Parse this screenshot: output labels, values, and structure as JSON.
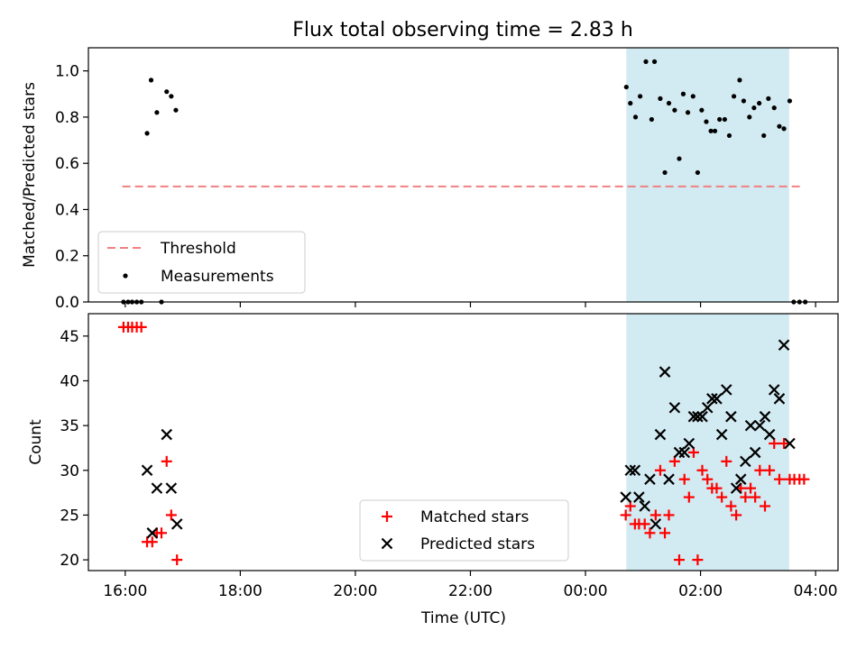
{
  "chart_data": {
    "title": "Flux total observing time = 2.83 h",
    "xlabel": "Time (UTC)",
    "x_ticks": [
      "16:00",
      "18:00",
      "20:00",
      "22:00",
      "00:00",
      "02:00",
      "04:00"
    ],
    "x_tick_hours": [
      16,
      18,
      20,
      22,
      24,
      26,
      28
    ],
    "xlim_hours": [
      15.36,
      28.39
    ],
    "shaded_span_hours": [
      24.71,
      27.54
    ],
    "shade_color": "#add8e6",
    "panels": [
      {
        "type": "scatter",
        "ylabel": "Matched/Predicted stars",
        "ylim": [
          0,
          1.1
        ],
        "y_ticks": [
          "0.0",
          "0.2",
          "0.4",
          "0.6",
          "0.8",
          "1.0"
        ],
        "y_tick_values": [
          0,
          0.2,
          0.4,
          0.6,
          0.8,
          1.0
        ],
        "legend": [
          "Threshold",
          "Measurements"
        ],
        "legend_position": "lower-left",
        "threshold": {
          "name": "Threshold",
          "y": 0.5,
          "x_range_hours": [
            15.95,
            27.8
          ],
          "color": "#f08080"
        },
        "series": [
          {
            "name": "Measurements",
            "color": "#000000",
            "points": [
              [
                15.97,
                0.0
              ],
              [
                16.05,
                0.0
              ],
              [
                16.12,
                0.0
              ],
              [
                16.2,
                0.0
              ],
              [
                16.28,
                0.0
              ],
              [
                16.38,
                0.73
              ],
              [
                16.45,
                0.96
              ],
              [
                16.55,
                0.82
              ],
              [
                16.72,
                0.91
              ],
              [
                16.8,
                0.89
              ],
              [
                16.88,
                0.83
              ],
              [
                16.63,
                0.0
              ],
              [
                24.71,
                0.93
              ],
              [
                24.78,
                0.86
              ],
              [
                24.87,
                0.8
              ],
              [
                24.95,
                0.89
              ],
              [
                25.05,
                1.04
              ],
              [
                25.15,
                0.79
              ],
              [
                25.2,
                1.04
              ],
              [
                25.3,
                0.88
              ],
              [
                25.38,
                0.56
              ],
              [
                25.45,
                0.86
              ],
              [
                25.55,
                0.83
              ],
              [
                25.63,
                0.62
              ],
              [
                25.7,
                0.9
              ],
              [
                25.78,
                0.82
              ],
              [
                25.87,
                0.89
              ],
              [
                25.95,
                0.56
              ],
              [
                26.02,
                0.83
              ],
              [
                26.1,
                0.78
              ],
              [
                26.18,
                0.74
              ],
              [
                26.25,
                0.74
              ],
              [
                26.33,
                0.79
              ],
              [
                26.42,
                0.79
              ],
              [
                26.5,
                0.72
              ],
              [
                26.58,
                0.89
              ],
              [
                26.68,
                0.96
              ],
              [
                26.75,
                0.87
              ],
              [
                26.85,
                0.8
              ],
              [
                26.93,
                0.84
              ],
              [
                27.02,
                0.86
              ],
              [
                27.1,
                0.72
              ],
              [
                27.18,
                0.88
              ],
              [
                27.28,
                0.84
              ],
              [
                27.37,
                0.76
              ],
              [
                27.45,
                0.75
              ],
              [
                27.55,
                0.87
              ],
              [
                27.62,
                0.0
              ],
              [
                27.72,
                0.0
              ],
              [
                27.82,
                0.0
              ]
            ]
          }
        ]
      },
      {
        "type": "scatter",
        "ylabel": "Count",
        "ylim": [
          18.8,
          47.5
        ],
        "y_ticks": [
          "20",
          "25",
          "30",
          "35",
          "40",
          "45"
        ],
        "y_tick_values": [
          20,
          25,
          30,
          35,
          40,
          45
        ],
        "legend": [
          "Matched stars",
          "Predicted stars"
        ],
        "legend_position": "lower-center",
        "series": [
          {
            "name": "Matched stars",
            "marker": "plus",
            "color": "#ff0000",
            "points": [
              [
                15.97,
                46
              ],
              [
                16.05,
                46
              ],
              [
                16.12,
                46
              ],
              [
                16.2,
                46
              ],
              [
                16.28,
                46
              ],
              [
                16.38,
                22
              ],
              [
                16.47,
                22
              ],
              [
                16.55,
                23
              ],
              [
                16.63,
                23
              ],
              [
                16.72,
                31
              ],
              [
                16.8,
                25
              ],
              [
                16.9,
                20
              ],
              [
                24.7,
                25
              ],
              [
                24.78,
                26
              ],
              [
                24.86,
                24
              ],
              [
                24.93,
                24
              ],
              [
                25.03,
                24
              ],
              [
                25.12,
                23
              ],
              [
                25.22,
                25
              ],
              [
                25.3,
                30
              ],
              [
                25.38,
                23
              ],
              [
                25.45,
                25
              ],
              [
                25.55,
                31
              ],
              [
                25.63,
                20
              ],
              [
                25.72,
                29
              ],
              [
                25.8,
                27
              ],
              [
                25.88,
                32
              ],
              [
                25.95,
                20
              ],
              [
                26.03,
                30
              ],
              [
                26.12,
                29
              ],
              [
                26.2,
                28
              ],
              [
                26.28,
                28
              ],
              [
                26.37,
                27
              ],
              [
                26.45,
                31
              ],
              [
                26.53,
                26
              ],
              [
                26.62,
                25
              ],
              [
                26.7,
                28
              ],
              [
                26.78,
                27
              ],
              [
                26.87,
                28
              ],
              [
                26.95,
                27
              ],
              [
                27.03,
                30
              ],
              [
                27.12,
                26
              ],
              [
                27.2,
                30
              ],
              [
                27.28,
                33
              ],
              [
                27.37,
                29
              ],
              [
                27.45,
                33
              ],
              [
                27.55,
                29
              ],
              [
                27.63,
                29
              ],
              [
                27.72,
                29
              ],
              [
                27.8,
                29
              ]
            ]
          },
          {
            "name": "Predicted stars",
            "marker": "x",
            "color": "#000000",
            "points": [
              [
                16.38,
                30
              ],
              [
                16.47,
                23
              ],
              [
                16.55,
                28
              ],
              [
                16.72,
                34
              ],
              [
                16.8,
                28
              ],
              [
                16.9,
                24
              ],
              [
                24.7,
                27
              ],
              [
                24.78,
                30
              ],
              [
                24.86,
                30
              ],
              [
                24.93,
                27
              ],
              [
                25.03,
                26
              ],
              [
                25.12,
                29
              ],
              [
                25.22,
                24
              ],
              [
                25.3,
                34
              ],
              [
                25.38,
                41
              ],
              [
                25.45,
                29
              ],
              [
                25.55,
                37
              ],
              [
                25.63,
                32
              ],
              [
                25.72,
                32
              ],
              [
                25.8,
                33
              ],
              [
                25.88,
                36
              ],
              [
                25.95,
                36
              ],
              [
                26.03,
                36
              ],
              [
                26.12,
                37
              ],
              [
                26.2,
                38
              ],
              [
                26.28,
                38
              ],
              [
                26.37,
                34
              ],
              [
                26.45,
                39
              ],
              [
                26.53,
                36
              ],
              [
                26.62,
                28
              ],
              [
                26.7,
                29
              ],
              [
                26.78,
                31
              ],
              [
                26.87,
                35
              ],
              [
                26.95,
                32
              ],
              [
                27.03,
                35
              ],
              [
                27.12,
                36
              ],
              [
                27.2,
                34
              ],
              [
                27.28,
                39
              ],
              [
                27.37,
                38
              ],
              [
                27.45,
                44
              ],
              [
                27.55,
                33
              ]
            ]
          }
        ]
      }
    ]
  }
}
